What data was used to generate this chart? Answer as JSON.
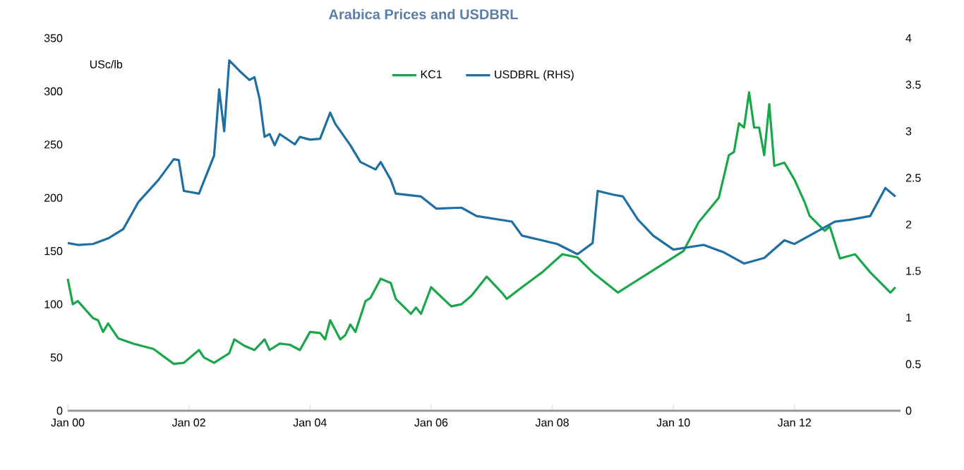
{
  "chart_data": {
    "type": "line",
    "title": "Arabica Prices and USDBRL",
    "ylabel": "USc/lb",
    "xlim": [
      "2000-01",
      "2013-10"
    ],
    "xticks": [
      {
        "value": "2000-01",
        "label": "Jan 00"
      },
      {
        "value": "2002-01",
        "label": "Jan 02"
      },
      {
        "value": "2004-01",
        "label": "Jan 04"
      },
      {
        "value": "2006-01",
        "label": "Jan 06"
      },
      {
        "value": "2008-01",
        "label": "Jan 08"
      },
      {
        "value": "2010-01",
        "label": "Jan 10"
      },
      {
        "value": "2012-01",
        "label": "Jan 12"
      }
    ],
    "ylim": [
      0,
      350
    ],
    "yticks": [
      0,
      50,
      100,
      150,
      200,
      250,
      300,
      350
    ],
    "y2lim": [
      0,
      4
    ],
    "y2ticks": [
      0,
      0.5,
      1,
      1.5,
      2,
      2.5,
      3,
      3.5,
      4
    ],
    "legend": "top",
    "grid": false,
    "marker": "none",
    "line_style": "solid",
    "series": [
      {
        "name": "KC1",
        "color": "#1aa64a",
        "x": [
          "2000-01",
          "2000-02",
          "2000-03",
          "2000-06",
          "2000-07",
          "2000-08",
          "2000-09",
          "2000-11",
          "2001-02",
          "2001-06",
          "2001-10",
          "2001-12",
          "2002-03",
          "2002-04",
          "2002-06",
          "2002-09",
          "2002-10",
          "2002-12",
          "2003-02",
          "2003-04",
          "2003-05",
          "2003-07",
          "2003-09",
          "2003-11",
          "2004-01",
          "2004-03",
          "2004-04",
          "2004-05",
          "2004-07",
          "2004-08",
          "2004-09",
          "2004-10",
          "2004-12",
          "2005-01",
          "2005-03",
          "2005-05",
          "2005-06",
          "2005-09",
          "2005-10",
          "2005-11",
          "2006-01",
          "2006-03",
          "2006-05",
          "2006-07",
          "2006-09",
          "2006-12",
          "2007-03",
          "2007-04",
          "2007-07",
          "2007-11",
          "2008-03",
          "2008-06",
          "2008-09",
          "2009-02",
          "2009-05",
          "2009-11",
          "2010-03",
          "2010-06",
          "2010-10",
          "2010-12",
          "2011-01",
          "2011-02",
          "2011-03",
          "2011-04",
          "2011-05",
          "2011-06",
          "2011-07",
          "2011-08",
          "2011-09",
          "2011-11",
          "2012-01",
          "2012-03",
          "2012-04",
          "2012-07",
          "2012-08",
          "2012-10",
          "2013-01",
          "2013-04",
          "2013-08",
          "2013-09"
        ],
        "values": [
          124,
          100,
          103,
          87,
          85,
          74,
          82,
          68,
          63,
          58,
          44,
          45,
          57,
          50,
          45,
          54,
          67,
          61,
          57,
          67,
          57,
          63,
          62,
          57,
          74,
          73,
          67,
          85,
          67,
          71,
          81,
          74,
          103,
          106,
          124,
          120,
          105,
          91,
          97,
          91,
          116,
          107,
          98,
          100,
          108,
          126,
          111,
          105,
          116,
          130,
          147,
          144,
          130,
          111,
          120,
          138,
          150,
          177,
          200,
          240,
          243,
          270,
          266,
          299,
          266,
          266,
          240,
          288,
          230,
          233,
          217,
          196,
          183,
          169,
          173,
          143,
          147,
          130,
          111,
          116
        ]
      },
      {
        "name": "USDBRL (RHS)",
        "color": "#1f6fa3",
        "axis": "y2",
        "x": [
          "2000-01",
          "2000-03",
          "2000-06",
          "2000-09",
          "2000-12",
          "2001-03",
          "2001-07",
          "2001-10",
          "2001-11",
          "2001-12",
          "2002-03",
          "2002-06",
          "2002-07",
          "2002-08",
          "2002-09",
          "2002-11",
          "2003-01",
          "2003-02",
          "2003-03",
          "2003-04",
          "2003-05",
          "2003-06",
          "2003-07",
          "2003-10",
          "2003-11",
          "2004-01",
          "2004-03",
          "2004-05",
          "2004-06",
          "2004-09",
          "2004-11",
          "2005-02",
          "2005-03",
          "2005-05",
          "2005-06",
          "2005-11",
          "2006-02",
          "2006-07",
          "2006-10",
          "2007-05",
          "2007-07",
          "2008-02",
          "2008-06",
          "2008-09",
          "2008-10",
          "2009-01",
          "2009-03",
          "2009-06",
          "2009-09",
          "2010-01",
          "2010-07",
          "2010-11",
          "2011-03",
          "2011-07",
          "2011-11",
          "2012-01",
          "2012-06",
          "2012-09",
          "2012-12",
          "2013-04",
          "2013-07",
          "2013-09"
        ],
        "values": [
          1.8,
          1.78,
          1.79,
          1.85,
          1.95,
          2.24,
          2.48,
          2.7,
          2.69,
          2.36,
          2.33,
          2.74,
          3.45,
          3.0,
          3.76,
          3.65,
          3.55,
          3.58,
          3.35,
          2.94,
          2.97,
          2.85,
          2.97,
          2.86,
          2.94,
          2.91,
          2.92,
          3.2,
          3.08,
          2.85,
          2.67,
          2.59,
          2.67,
          2.48,
          2.33,
          2.3,
          2.17,
          2.18,
          2.09,
          2.03,
          1.88,
          1.79,
          1.68,
          1.8,
          2.36,
          2.32,
          2.3,
          2.05,
          1.88,
          1.73,
          1.78,
          1.7,
          1.58,
          1.64,
          1.83,
          1.79,
          1.94,
          2.03,
          2.05,
          2.09,
          2.39,
          2.3
        ]
      }
    ]
  }
}
